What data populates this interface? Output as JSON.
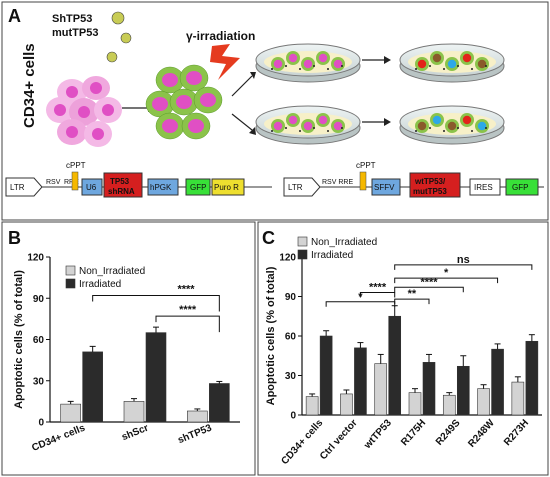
{
  "panel_a": {
    "letter": "A",
    "side_label": "CD34+ cells",
    "vector_label_1": "ShTP53",
    "vector_label_2": "mutTP53",
    "irradiation_label": "γ-irradiation",
    "construct_1": {
      "ltr": "LTR",
      "rsv": "RSV",
      "rre": "RRE",
      "cppt": "cPPT",
      "u6": "U6",
      "shrna_1": "TP53",
      "shrna_2": "shRNA",
      "hpgk": "hPGK",
      "gfp": "GFP",
      "puro": "Puro R"
    },
    "construct_2": {
      "ltr": "LTR",
      "rsv_rre": "RSV RRE",
      "cppt": "cPPT",
      "sffv": "SFFV",
      "wt_1": "wtTP53/",
      "wt_2": "mutTP53",
      "ires": "IRES",
      "gfp": "GFP"
    }
  },
  "colors": {
    "non_irradiated": "#d3d3d3",
    "irradiated": "#2b2b2b"
  },
  "chart_data": [
    {
      "type": "bar",
      "panel": "B",
      "ylabel": "Apoptotic cells (% of total)",
      "ylim": [
        0,
        120
      ],
      "yticks": [
        "0",
        "30",
        "60",
        "90",
        "120"
      ],
      "categories": [
        "CD34+ cells",
        "shScr",
        "shTP53"
      ],
      "legend": [
        "Non_Irradiated",
        "Irradiated"
      ],
      "series": [
        {
          "name": "Non_Irradiated",
          "values": [
            13,
            15,
            8
          ],
          "errors": [
            2,
            2,
            1.5
          ]
        },
        {
          "name": "Irradiated",
          "values": [
            51,
            65,
            28
          ],
          "errors": [
            4,
            4,
            1.5
          ]
        }
      ],
      "significance": [
        "****",
        "****"
      ]
    },
    {
      "type": "bar",
      "panel": "C",
      "ylabel": "Apoptotic cells (% of total)",
      "ylim": [
        0,
        120
      ],
      "yticks": [
        "0",
        "30",
        "60",
        "90",
        "120"
      ],
      "categories": [
        "CD34+ cells",
        "Ctrl vector",
        "wtTP53",
        "R175H",
        "R249S",
        "R248W",
        "R273H"
      ],
      "legend": [
        "Non_Irradiated",
        "Irradiated"
      ],
      "series": [
        {
          "name": "Non_Irradiated",
          "values": [
            14,
            16,
            39,
            17,
            15,
            20,
            25
          ],
          "errors": [
            2,
            3,
            7,
            3,
            2,
            3,
            4
          ]
        },
        {
          "name": "Irradiated",
          "values": [
            60,
            51,
            75,
            40,
            37,
            50,
            56
          ],
          "errors": [
            4,
            4,
            8,
            6,
            8,
            4,
            5
          ]
        }
      ],
      "significance": [
        "*",
        "****",
        "**",
        "****",
        "*",
        "ns"
      ]
    }
  ]
}
